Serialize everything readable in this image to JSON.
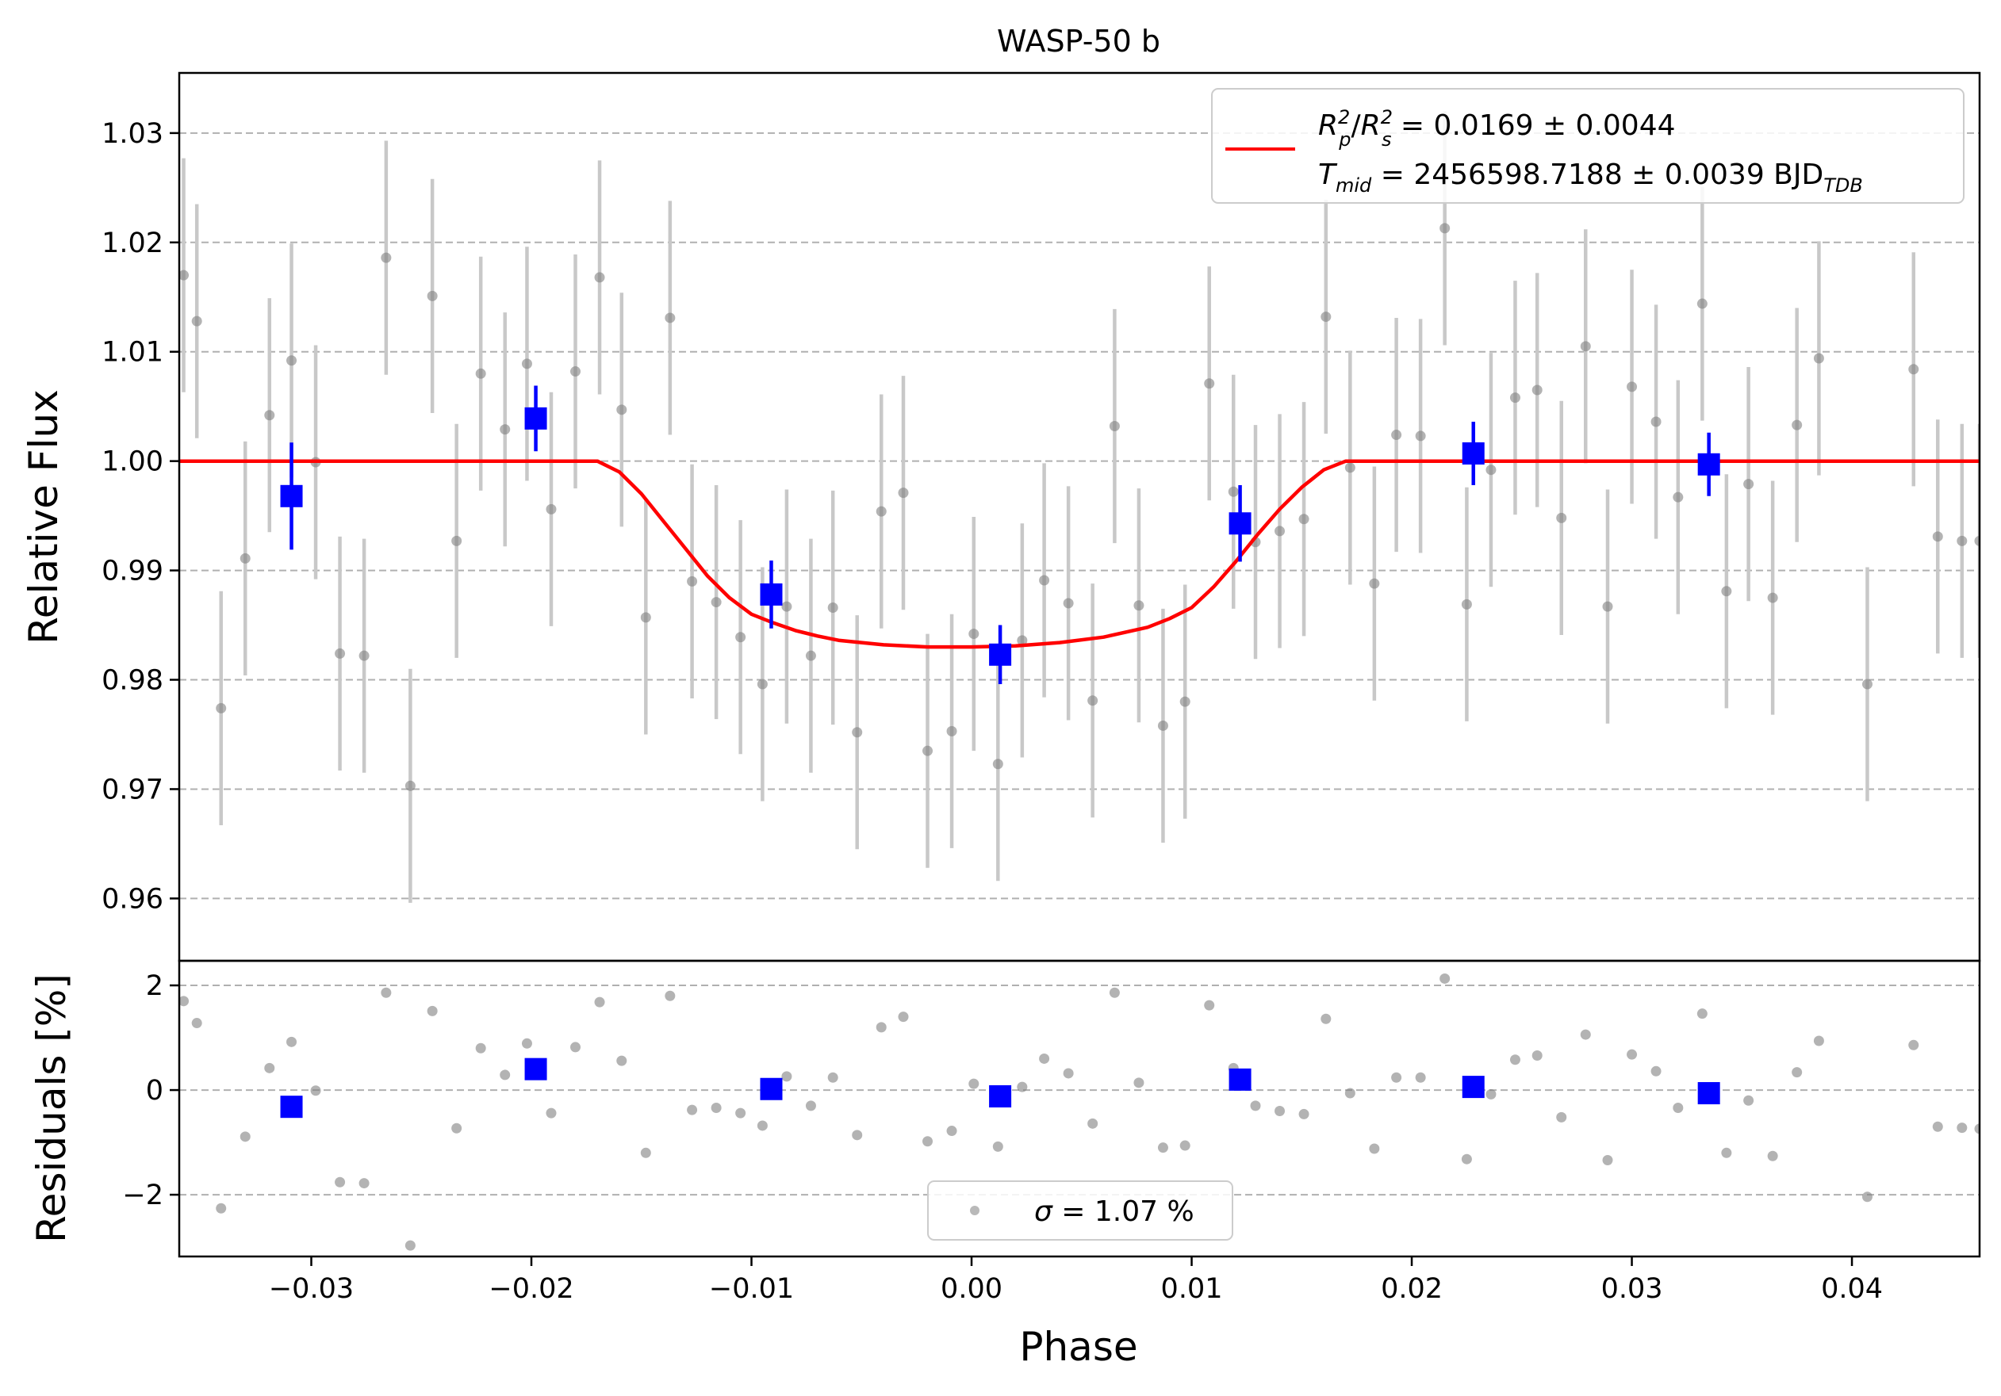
{
  "chart_data": [
    {
      "type": "scatter",
      "panel": "top",
      "title": "WASP-50 b",
      "xlabel": "",
      "ylabel": "Relative Flux",
      "xlim": [
        -0.036,
        0.0458
      ],
      "ylim": [
        0.9543,
        1.0355
      ],
      "yticks": [
        0.96,
        0.97,
        0.98,
        0.99,
        1.0,
        1.01,
        1.02,
        1.03
      ],
      "ytick_labels": [
        "0.96",
        "0.97",
        "0.98",
        "0.99",
        "1.00",
        "1.01",
        "1.02",
        "1.03"
      ],
      "grid": "horizontal dashed",
      "legend": {
        "placement": "top-right",
        "line1": "Rₚ²/Rₛ² = 0.0169 ± 0.0044",
        "line1_lhs_a": "R",
        "line1_lhs_a_sub": "p",
        "line1_lhs_a_sup": "2",
        "line1_lhs_b": "R",
        "line1_lhs_b_sub": "s",
        "line1_lhs_b_sup": "2",
        "line1_rhs": " = 0.0169 ± 0.0044",
        "line2_lhs": "T",
        "line2_lhs_sub": "mid",
        "line2_rhs": " = 2456598.7188 ± 0.0039 BJD",
        "line2_unit_sub": "TDB"
      },
      "series": [
        {
          "kind": "raw",
          "color": "#808080",
          "errorbar_color": "#c8c8c8",
          "err": 0.0107,
          "x": [
            -0.0358,
            -0.0352,
            -0.0341,
            -0.033,
            -0.0319,
            -0.0309,
            -0.0298,
            -0.0287,
            -0.0276,
            -0.0266,
            -0.0255,
            -0.0245,
            -0.0234,
            -0.0223,
            -0.0212,
            -0.0202,
            -0.0191,
            -0.018,
            -0.0169,
            -0.0159,
            -0.0148,
            -0.0137,
            -0.0127,
            -0.0116,
            -0.0105,
            -0.0095,
            -0.0084,
            -0.0073,
            -0.0063,
            -0.0052,
            -0.0041,
            -0.0031,
            -0.002,
            -0.0009,
            0.0001,
            0.0012,
            0.0023,
            0.0033,
            0.0044,
            0.0055,
            0.0065,
            0.0076,
            0.0087,
            0.0097,
            0.0108,
            0.0119,
            0.0129,
            0.014,
            0.0151,
            0.0161,
            0.0172,
            0.0183,
            0.0193,
            0.0204,
            0.0215,
            0.0225,
            0.0236,
            0.0247,
            0.0257,
            0.0268,
            0.0279,
            0.0289,
            0.03,
            0.0311,
            0.0321,
            0.0332,
            0.0343,
            0.0353,
            0.0364,
            0.0375,
            0.0385,
            0.0407,
            0.0428,
            0.0439,
            0.045,
            0.0458
          ],
          "y": [
            1.017,
            1.0128,
            0.9774,
            0.9911,
            1.0042,
            1.0092,
            0.9999,
            0.9824,
            0.9822,
            1.0186,
            0.9703,
            1.0151,
            0.9927,
            1.008,
            1.0029,
            1.0089,
            0.9956,
            1.0082,
            1.0168,
            1.0047,
            0.9857,
            1.0131,
            0.989,
            0.9871,
            0.9839,
            0.9796,
            0.9867,
            0.9822,
            0.9866,
            0.9752,
            0.9954,
            0.9971,
            0.9735,
            0.9753,
            0.9842,
            0.9723,
            0.9836,
            0.9891,
            0.987,
            0.9781,
            1.0032,
            0.9868,
            0.9758,
            0.978,
            1.0071,
            0.9972,
            0.9926,
            0.9936,
            0.9947,
            1.0132,
            0.9994,
            0.9888,
            1.0024,
            1.0023,
            1.0213,
            0.9869,
            0.9992,
            1.0058,
            1.0065,
            0.9948,
            1.0105,
            0.9867,
            1.0068,
            1.0036,
            0.9967,
            1.0144,
            0.9881,
            0.9979,
            0.9875,
            1.0033,
            1.0094,
            0.9796,
            1.0084,
            0.9931,
            0.9927,
            0.9927
          ]
        },
        {
          "kind": "binned",
          "color": "#0000ff",
          "x": [
            -0.0309,
            -0.0198,
            -0.0091,
            0.0013,
            0.0122,
            0.0228,
            0.0335
          ],
          "y": [
            0.9968,
            1.0039,
            0.9878,
            0.9823,
            0.9943,
            1.0007,
            0.9997
          ],
          "err": [
            0.0049,
            0.003,
            0.0031,
            0.0027,
            0.0035,
            0.0029,
            0.0029
          ]
        },
        {
          "kind": "model",
          "color": "#ff0000",
          "x": [
            -0.036,
            -0.017,
            -0.016,
            -0.015,
            -0.014,
            -0.013,
            -0.012,
            -0.011,
            -0.01,
            -0.009,
            -0.008,
            -0.007,
            -0.006,
            -0.004,
            -0.002,
            0.0,
            0.002,
            0.004,
            0.006,
            0.008,
            0.009,
            0.01,
            0.011,
            0.012,
            0.013,
            0.014,
            0.015,
            0.016,
            0.017,
            0.0458
          ],
          "y": [
            1.0,
            1.0,
            0.999,
            0.997,
            0.9945,
            0.992,
            0.9895,
            0.9875,
            0.986,
            0.9852,
            0.9845,
            0.984,
            0.9836,
            0.9832,
            0.983,
            0.983,
            0.9831,
            0.9834,
            0.9839,
            0.9848,
            0.9856,
            0.9866,
            0.9885,
            0.9908,
            0.9933,
            0.9956,
            0.9976,
            0.9992,
            1.0,
            1.0
          ]
        }
      ]
    },
    {
      "type": "scatter",
      "panel": "bottom",
      "xlabel": "Phase",
      "ylabel": "Residuals [%]",
      "xlim": [
        -0.036,
        0.0458
      ],
      "ylim": [
        -3.18,
        2.47
      ],
      "xticks": [
        -0.03,
        -0.02,
        -0.01,
        0.0,
        0.01,
        0.02,
        0.03,
        0.04
      ],
      "xtick_labels": [
        "−0.03",
        "−0.02",
        "−0.01",
        "0.00",
        "0.01",
        "0.02",
        "0.03",
        "0.04"
      ],
      "yticks": [
        -2,
        0,
        2
      ],
      "ytick_labels": [
        "−2",
        "0",
        "2"
      ],
      "grid": "horizontal dashed",
      "legend": {
        "placement": "bottom-center",
        "sigma_symbol": "σ",
        "text": " = 1.07 %"
      },
      "series": [
        {
          "kind": "raw",
          "color": "#808080",
          "x": [
            -0.0358,
            -0.0352,
            -0.0341,
            -0.033,
            -0.0319,
            -0.0309,
            -0.0298,
            -0.0287,
            -0.0276,
            -0.0266,
            -0.0255,
            -0.0245,
            -0.0234,
            -0.0223,
            -0.0212,
            -0.0202,
            -0.0191,
            -0.018,
            -0.0169,
            -0.0159,
            -0.0148,
            -0.0137,
            -0.0127,
            -0.0116,
            -0.0105,
            -0.0095,
            -0.0084,
            -0.0073,
            -0.0063,
            -0.0052,
            -0.0041,
            -0.0031,
            -0.002,
            -0.0009,
            0.0001,
            0.0012,
            0.0023,
            0.0033,
            0.0044,
            0.0055,
            0.0065,
            0.0076,
            0.0087,
            0.0097,
            0.0108,
            0.0119,
            0.0129,
            0.014,
            0.0151,
            0.0161,
            0.0172,
            0.0183,
            0.0193,
            0.0204,
            0.0215,
            0.0225,
            0.0236,
            0.0247,
            0.0257,
            0.0268,
            0.0279,
            0.0289,
            0.03,
            0.0311,
            0.0321,
            0.0332,
            0.0343,
            0.0353,
            0.0364,
            0.0375,
            0.0385,
            0.0407,
            0.0428,
            0.0439,
            0.045,
            0.0458
          ],
          "y": [
            1.7,
            1.28,
            -2.26,
            -0.89,
            0.42,
            0.92,
            -0.01,
            -1.76,
            -1.78,
            1.86,
            -2.97,
            1.51,
            -0.73,
            0.8,
            0.29,
            0.89,
            -0.44,
            0.82,
            1.68,
            0.56,
            -1.2,
            1.8,
            -0.38,
            -0.34,
            -0.44,
            -0.68,
            0.26,
            -0.3,
            0.24,
            -0.86,
            1.2,
            1.4,
            -0.98,
            -0.78,
            0.12,
            -1.08,
            0.06,
            0.6,
            0.32,
            -0.64,
            1.86,
            0.14,
            -1.1,
            -1.06,
            1.62,
            0.42,
            -0.3,
            -0.4,
            -0.46,
            1.36,
            -0.06,
            -1.12,
            0.24,
            0.24,
            2.13,
            -1.32,
            -0.08,
            0.58,
            0.66,
            -0.52,
            1.06,
            -1.34,
            0.68,
            0.36,
            -0.34,
            1.46,
            -1.2,
            -0.2,
            -1.26,
            0.34,
            0.94,
            -2.04,
            0.86,
            -0.7,
            -0.72,
            -0.74
          ]
        },
        {
          "kind": "binned",
          "color": "#0000ff",
          "x": [
            -0.0309,
            -0.0198,
            -0.0091,
            0.0013,
            0.0122,
            0.0228,
            0.0335
          ],
          "y": [
            -0.32,
            0.4,
            0.02,
            -0.12,
            0.2,
            0.06,
            -0.06
          ]
        }
      ]
    }
  ]
}
